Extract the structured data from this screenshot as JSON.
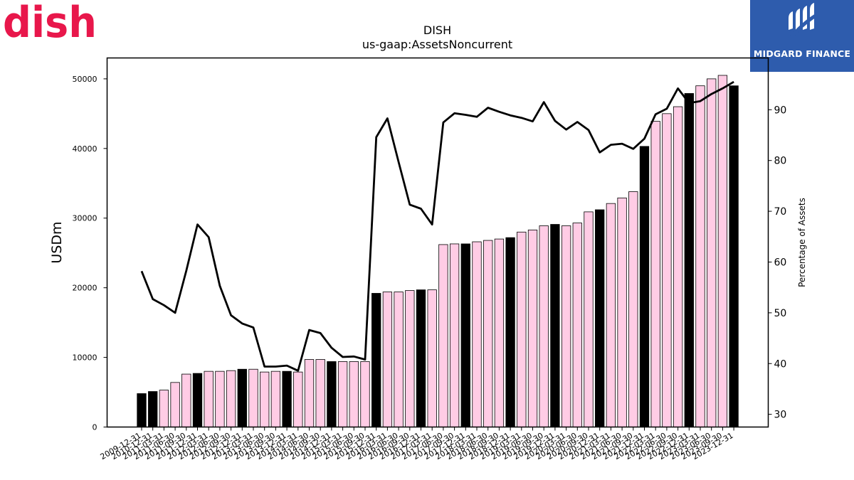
{
  "logo_left": {
    "text": "dish",
    "color": "#e8174b"
  },
  "logo_right": {
    "text": "MIDGARD FINANCE",
    "background": "#2e5cad"
  },
  "chart_data": {
    "type": "bar",
    "title": "DISH",
    "subtitle": "us-gaap:AssetsNoncurrent",
    "ylabel": "USDm",
    "y2label": "Percentage of Assets",
    "ylim": [
      0,
      53000
    ],
    "y2lim": [
      27.5,
      100.2
    ],
    "yticks": [
      0,
      10000,
      20000,
      30000,
      40000,
      50000
    ],
    "y2ticks": [
      30,
      40,
      50,
      60,
      70,
      80,
      90
    ],
    "grid": false,
    "colors": {
      "annual": "#000000",
      "quarterly": "#ffcce5",
      "line": "#000000"
    },
    "categories": [
      "2009-12-31",
      "2010-12-31",
      "2011-03-31",
      "2011-06-30",
      "2011-09-30",
      "2011-12-31",
      "2012-03-31",
      "2012-06-30",
      "2012-09-30",
      "2012-12-31",
      "2013-03-31",
      "2013-06-30",
      "2013-09-30",
      "2013-12-31",
      "2014-03-31",
      "2014-06-30",
      "2014-09-30",
      "2014-12-31",
      "2015-03-31",
      "2015-06-30",
      "2015-09-30",
      "2015-12-31",
      "2016-03-31",
      "2016-06-30",
      "2016-09-30",
      "2016-12-31",
      "2017-03-31",
      "2017-06-30",
      "2017-09-30",
      "2017-12-31",
      "2018-03-31",
      "2018-06-30",
      "2018-09-30",
      "2018-12-31",
      "2019-03-31",
      "2019-06-30",
      "2019-09-30",
      "2019-12-31",
      "2020-03-31",
      "2020-06-30",
      "2020-09-30",
      "2020-12-31",
      "2021-03-31",
      "2021-06-30",
      "2021-09-30",
      "2021-12-31",
      "2022-03-31",
      "2022-06-30",
      "2022-09-30",
      "2022-12-31",
      "2023-03-31",
      "2023-06-30",
      "2023-09-30",
      "2023-12-31"
    ],
    "series": [
      {
        "values": [
          4800,
          5100,
          5300,
          6400,
          7600,
          7700,
          8000,
          8000,
          8100,
          8300,
          8300,
          7900,
          8000,
          8000,
          7900,
          9700,
          9700,
          9400,
          9400,
          9400,
          9400,
          19200,
          19400,
          19400,
          19600,
          19700,
          19700,
          26200,
          26300,
          26300,
          26600,
          26800,
          27000,
          27200,
          28000,
          28300,
          28900,
          29100,
          28900,
          29300,
          30900,
          31200,
          32100,
          32900,
          33800,
          40300,
          43900,
          45000,
          46000,
          47900,
          49000,
          50000,
          50500,
          49000
        ]
      },
      {
        "values": [
          58.2,
          52.7,
          51.5,
          50.0,
          58.3,
          67.4,
          64.9,
          55.3,
          49.5,
          47.9,
          47.1,
          39.4,
          39.4,
          39.6,
          38.6,
          46.6,
          46.0,
          43.1,
          41.3,
          41.4,
          40.8,
          84.6,
          88.3,
          79.7,
          71.3,
          70.5,
          67.4,
          87.5,
          89.3,
          89.0,
          88.6,
          90.4,
          89.6,
          88.9,
          88.4,
          87.7,
          91.5,
          87.8,
          86.1,
          87.6,
          86.0,
          81.6,
          83.1,
          83.3,
          82.3,
          84.3,
          89.1,
          90.2,
          94.2,
          91.3,
          91.7,
          93.1,
          94.2,
          95.5
        ]
      }
    ]
  }
}
